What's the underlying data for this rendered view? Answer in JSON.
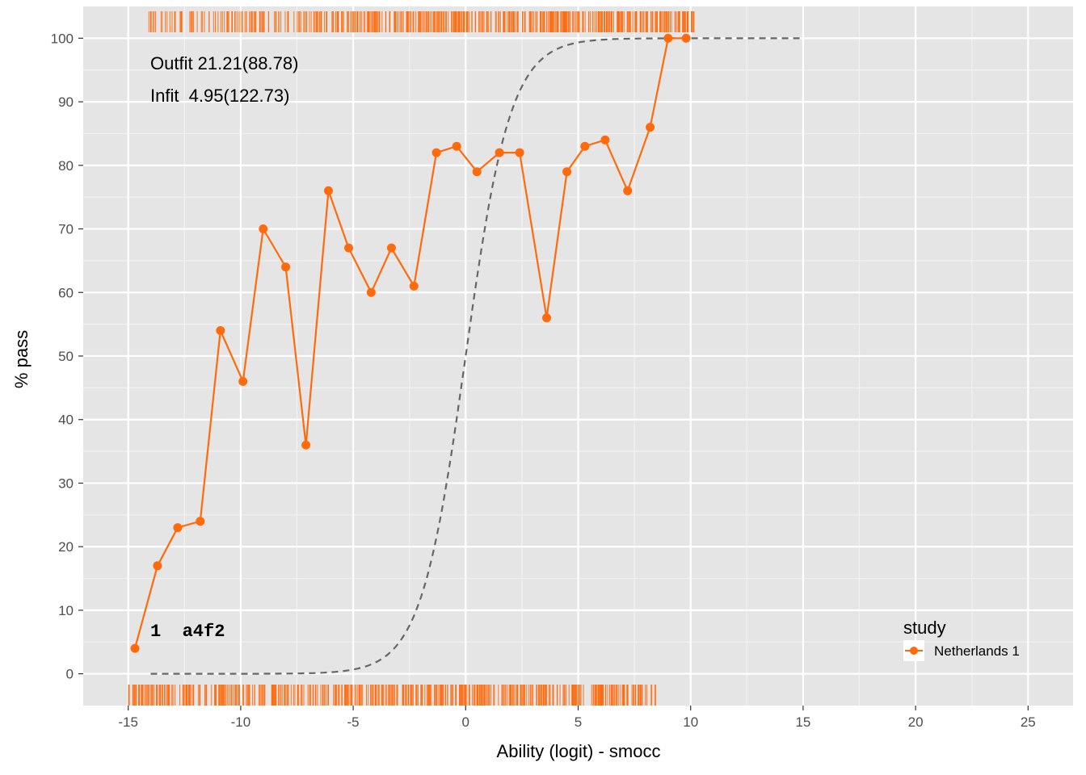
{
  "chart_data": {
    "type": "line",
    "xlabel": "Ability (logit) - smocc",
    "ylabel": "% pass",
    "xlim": [
      -17,
      27
    ],
    "ylim": [
      -5,
      105
    ],
    "x_ticks": [
      -15,
      -10,
      -5,
      0,
      5,
      10,
      15,
      20,
      25
    ],
    "y_ticks": [
      0,
      10,
      20,
      30,
      40,
      50,
      60,
      70,
      80,
      90,
      100
    ],
    "x_tick_labels": [
      "-15",
      "-10",
      "-5",
      "0",
      "5",
      "10",
      "15",
      "20",
      "25"
    ],
    "y_tick_labels": [
      "0",
      "10",
      "20",
      "30",
      "40",
      "50",
      "60",
      "70",
      "80",
      "90",
      "100"
    ],
    "grid": true,
    "annotations": {
      "outfit": "Outfit 21.21(88.78)",
      "infit": "Infit  4.95(122.73)",
      "item": "1  a4f2"
    },
    "legend": {
      "title": "study",
      "placement": "bottom-right",
      "entries": [
        {
          "label": "Netherlands 1",
          "color": "#ff6a0d"
        }
      ]
    },
    "series": [
      {
        "name": "Netherlands 1",
        "color": "#ff6a0d",
        "x": [
          -14.7,
          -13.7,
          -12.8,
          -11.8,
          -10.9,
          -9.9,
          -9.0,
          -8.0,
          -7.1,
          -6.1,
          -5.2,
          -4.2,
          -3.3,
          -2.3,
          -1.3,
          -0.4,
          0.5,
          1.5,
          2.4,
          3.6,
          4.5,
          5.3,
          6.2,
          7.2,
          8.2,
          9.0,
          9.8
        ],
        "y": [
          4,
          17,
          23,
          24,
          54,
          46,
          70,
          64,
          36,
          76,
          67,
          60,
          67,
          61,
          82,
          83,
          79,
          82,
          82,
          56,
          79,
          83,
          84,
          76,
          86,
          100,
          100
        ]
      }
    ],
    "model_curve": {
      "style": "dashed",
      "color": "#666666",
      "x_range": [
        -14,
        15
      ],
      "center": 0,
      "slope": 1
    },
    "rugs": {
      "color": "#ff6a0d",
      "top_x_range": [
        -14.5,
        10.2
      ],
      "bottom_x_range": [
        -15,
        8.5
      ]
    }
  }
}
